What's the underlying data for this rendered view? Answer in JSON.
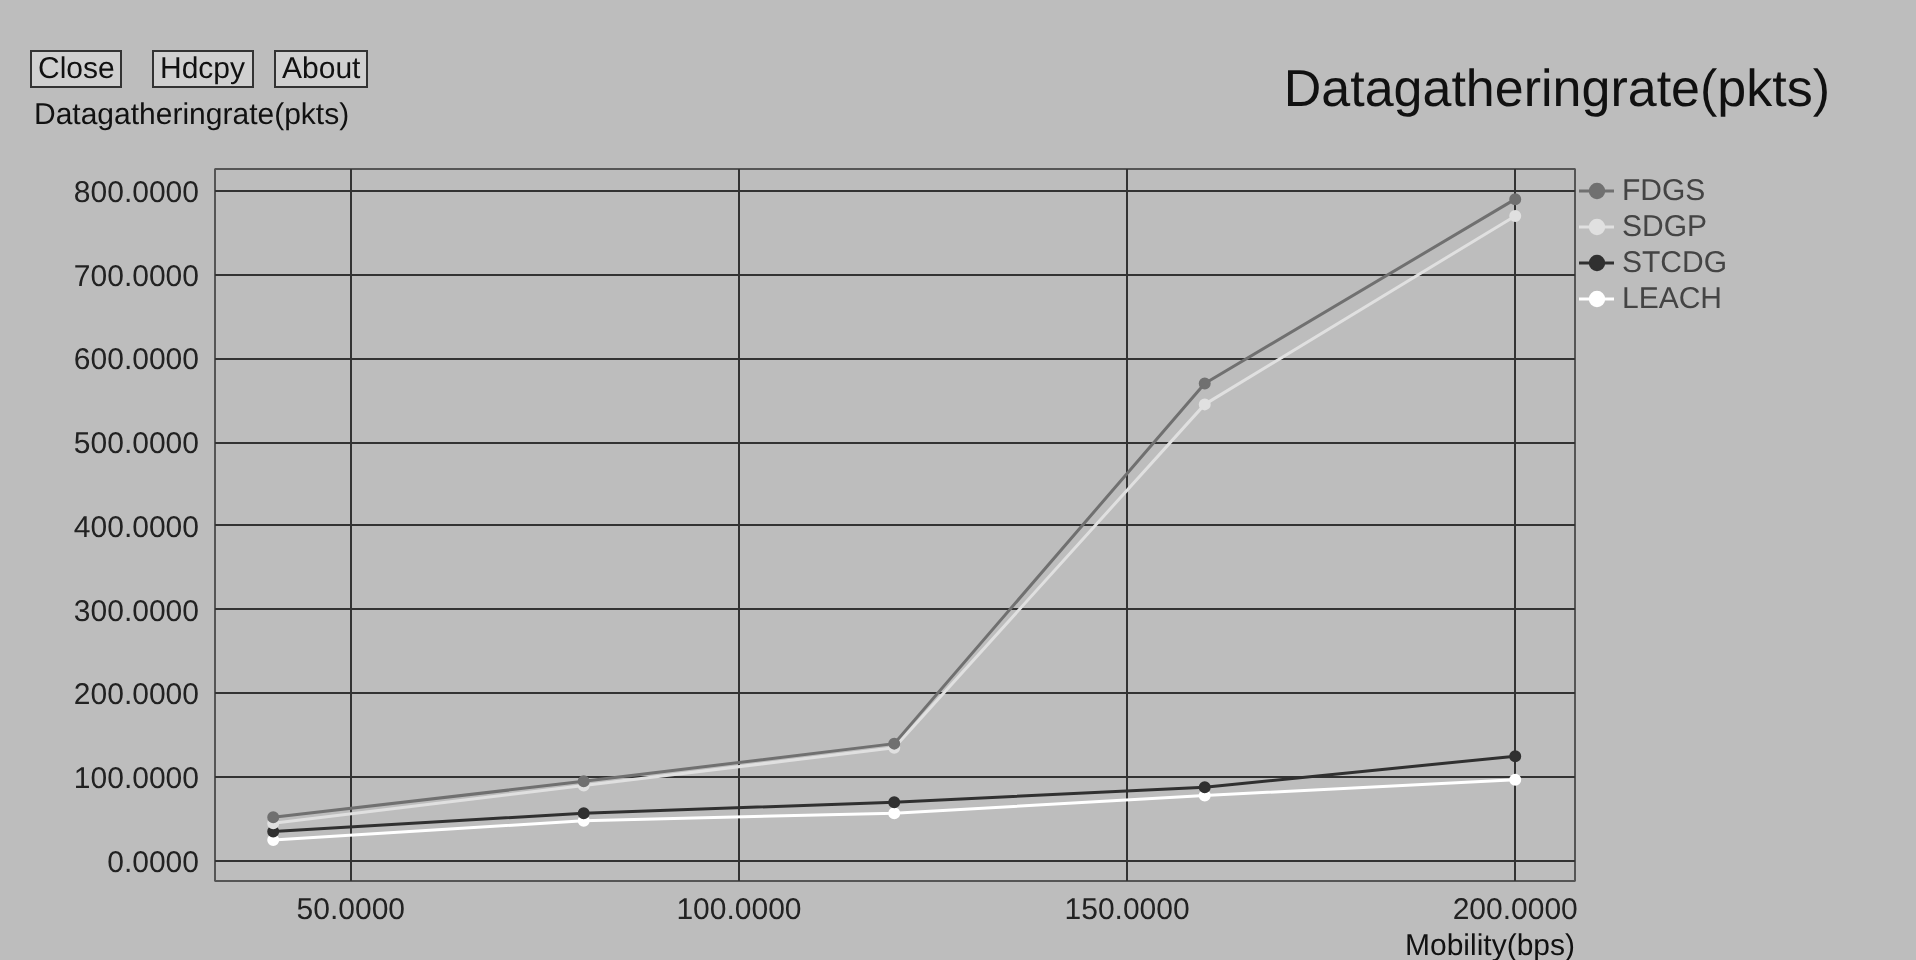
{
  "chart_data": {
    "type": "line",
    "title": "Datagatheringrate(pkts)",
    "ylabel": "Datagatheringrate(pkts)",
    "xlabel": "Mobility(bps)",
    "annotations": [
      "Close",
      "Hdcpy",
      "About"
    ],
    "x": [
      40,
      80,
      120,
      160,
      200
    ],
    "series": [
      {
        "name": "FDGS",
        "color": "#707070",
        "values": [
          52,
          95,
          140,
          570,
          790
        ]
      },
      {
        "name": "SDGP",
        "color": "#e0e0e0",
        "values": [
          45,
          90,
          135,
          545,
          770
        ]
      },
      {
        "name": "STCDG",
        "color": "#303030",
        "values": [
          35,
          57,
          70,
          88,
          125
        ]
      },
      {
        "name": "LEACH",
        "color": "#ffffff",
        "values": [
          25,
          48,
          57,
          78,
          97
        ]
      }
    ],
    "xlim": [
      32.5,
      207.7
    ],
    "ylim": [
      -24,
      826
    ],
    "xticks": [
      {
        "value": 50,
        "label": "50.0000"
      },
      {
        "value": 100,
        "label": "100.0000"
      },
      {
        "value": 150,
        "label": "150.0000"
      },
      {
        "value": 200,
        "label": "200.0000"
      }
    ],
    "yticks": [
      {
        "value": 0,
        "label": "0.0000"
      },
      {
        "value": 100,
        "label": "100.0000"
      },
      {
        "value": 200,
        "label": "200.0000"
      },
      {
        "value": 300,
        "label": "300.0000"
      },
      {
        "value": 400,
        "label": "400.0000"
      },
      {
        "value": 500,
        "label": "500.0000"
      },
      {
        "value": 600,
        "label": "600.0000"
      },
      {
        "value": 700,
        "label": "700.0000"
      },
      {
        "value": 800,
        "label": "800.0000"
      }
    ],
    "grid": true,
    "legend": "top right",
    "marker": "circle",
    "line_style": "solid"
  }
}
